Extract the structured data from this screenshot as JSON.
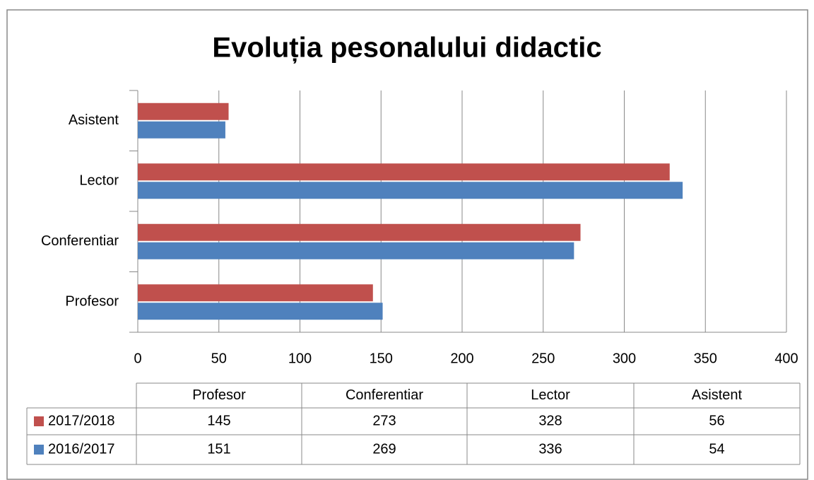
{
  "chart_data": {
    "type": "bar",
    "orientation": "horizontal",
    "title": "Evoluția pesonalului didactic",
    "categories": [
      "Profesor",
      "Conferentiar",
      "Lector",
      "Asistent"
    ],
    "series": [
      {
        "name": "2017/2018",
        "color": "#c0504d",
        "values": [
          145,
          273,
          328,
          56
        ]
      },
      {
        "name": "2016/2017",
        "color": "#4f81bd",
        "values": [
          151,
          269,
          336,
          54
        ]
      }
    ],
    "xlim": [
      0,
      400
    ],
    "xticks": [
      0,
      50,
      100,
      150,
      200,
      250,
      300,
      350,
      400
    ],
    "grid": true,
    "data_table": true
  }
}
